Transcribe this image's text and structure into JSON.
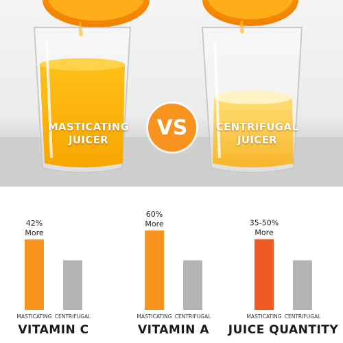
{
  "hero": {
    "left_label": [
      "MASTICATING",
      "JUICER"
    ],
    "right_label": [
      "CENTRIFUGAL",
      "JUICER"
    ],
    "vs": "VS"
  },
  "colors": {
    "orange": "#f7931e",
    "red_orange": "#f15a24",
    "gray": "#b3b3b3",
    "text": "#222222"
  },
  "chart_data": [
    {
      "type": "bar",
      "title": "VITAMIN C",
      "categories": [
        "MASTICATING",
        "CENTRIFUGAL"
      ],
      "values": [
        142,
        100
      ],
      "annotation": [
        "42%",
        "More"
      ],
      "colors": [
        "#f7931e",
        "#b3b3b3"
      ]
    },
    {
      "type": "bar",
      "title": "VITAMIN A",
      "categories": [
        "MASTICATING",
        "CENTRIFUGAL"
      ],
      "values": [
        160,
        100
      ],
      "annotation": [
        "60%",
        "More"
      ],
      "colors": [
        "#f7931e",
        "#b3b3b3"
      ]
    },
    {
      "type": "bar",
      "title": "JUICE QUANTITY",
      "categories": [
        "MASTICATING",
        "CENTRIFUGAL"
      ],
      "values": [
        142.5,
        100
      ],
      "annotation": [
        "35-50%",
        "More"
      ],
      "colors": [
        "#f15a24",
        "#b3b3b3"
      ]
    }
  ]
}
